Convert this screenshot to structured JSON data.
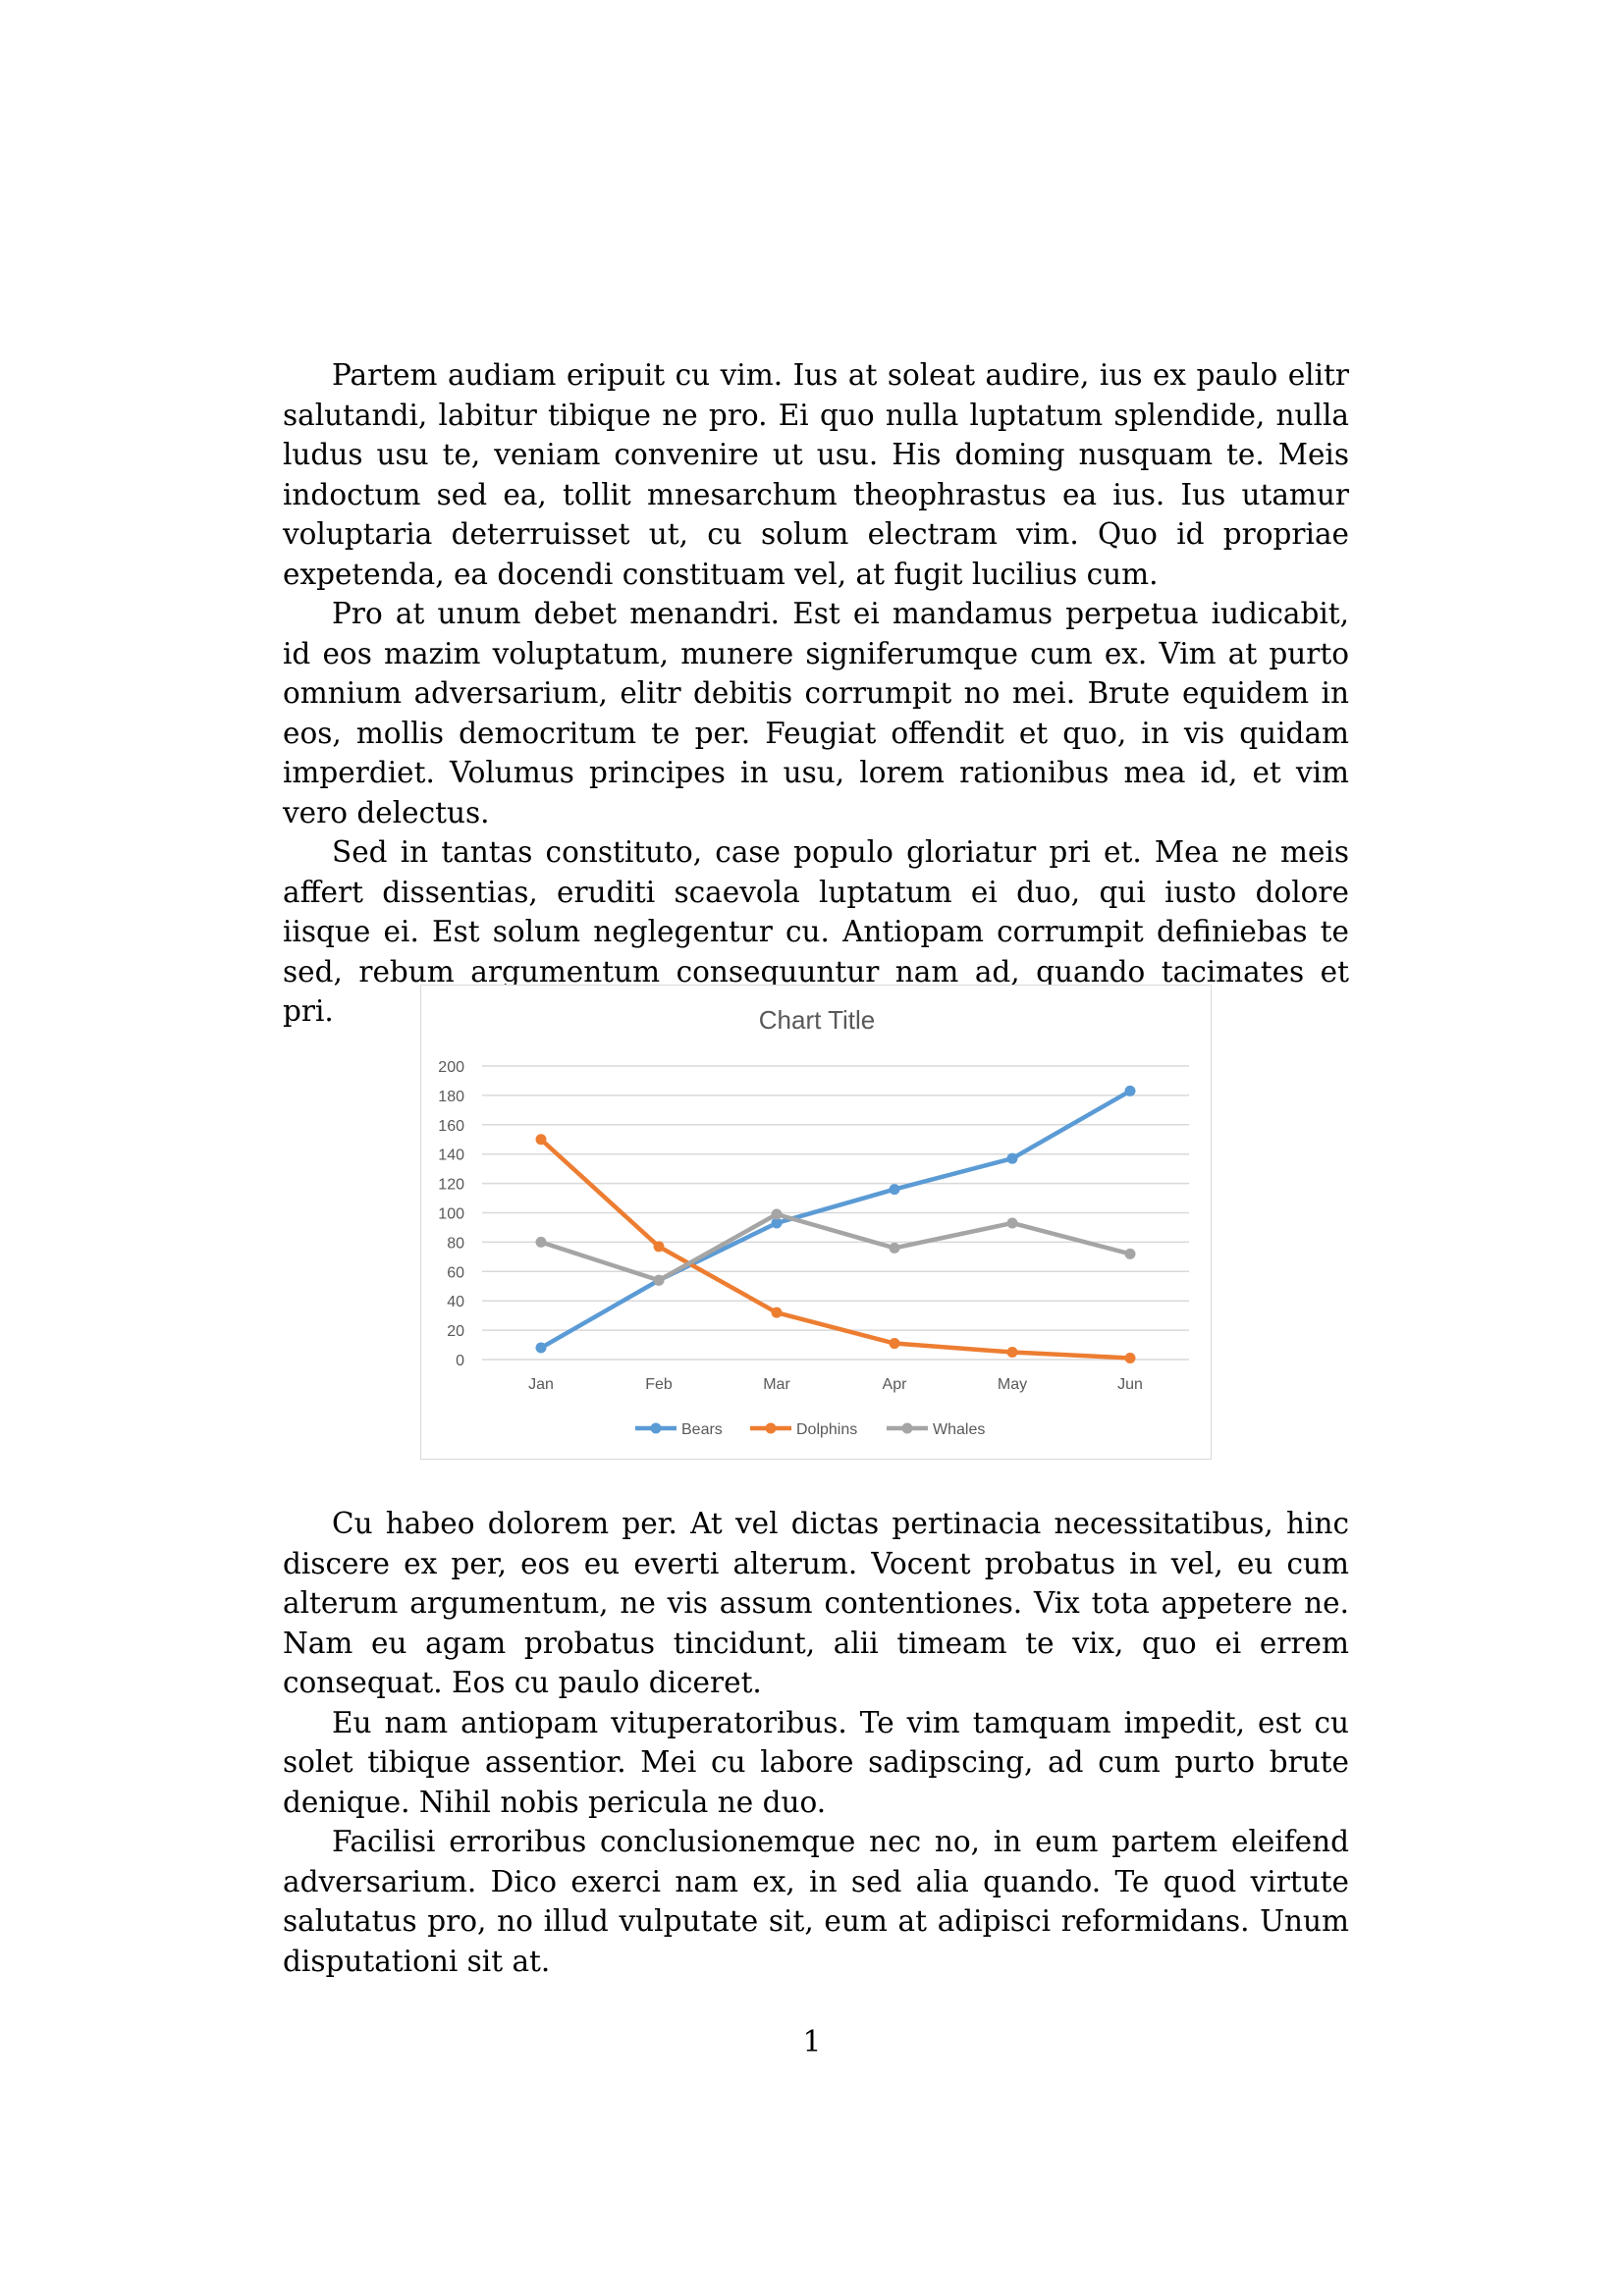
{
  "document": {
    "paragraphs_top": [
      "Partem audiam eripuit cu vim. Ius at soleat audire, ius ex paulo elitr salutandi, labitur tibique ne pro. Ei quo nulla luptatum splendide, nulla ludus usu te, veniam convenire ut usu. His doming nusquam te. Meis indoctum sed ea, tollit mnesarchum theophrastus ea ius. Ius utamur voluptaria deterruisset ut, cu solum electram vim. Quo id propriae expetenda, ea docendi constituam vel, at fugit lucilius cum.",
      "Pro at unum debet menandri. Est ei mandamus perpetua iudicabit, id eos mazim voluptatum, munere signiferumque cum ex. Vim at purto omnium adversarium, elitr debitis corrumpit no mei. Brute equidem in eos, mollis democritum te per. Feugiat offendit et quo, in vis quidam imperdiet. Volumus principes in usu, lorem rationibus mea id, et vim vero delectus.",
      "Sed in tantas constituto, case populo gloriatur pri et. Mea ne meis affert dissentias, eruditi scaevola luptatum ei duo, qui iusto dolore iisque ei. Est solum neglegentur cu. Antiopam corrumpit definiebas te sed, rebum argumentum consequuntur nam ad, quando tacimates et pri."
    ],
    "paragraphs_bottom": [
      "Cu habeo dolorem per. At vel dictas pertinacia necessitatibus, hinc discere ex per, eos eu everti alterum. Vocent probatus in vel, eu cum alterum argumentum, ne vis assum contentiones. Vix tota appetere ne. Nam eu agam probatus tincidunt, alii timeam te vix, quo ei errem consequat. Eos cu paulo diceret.",
      "Eu nam antiopam vituperatoribus. Te vim tamquam impedit, est cu solet tibique assentior. Mei cu labore sadipscing, ad cum purto brute denique. Nihil nobis pericula ne duo.",
      "Facilisi erroribus conclusionemque nec no, in eum partem eleifend adversarium. Dico exerci nam ex, in sed alia quando. Te quod virtute salutatus pro, no illud vulputate sit, eum at adipisci reformidans. Unum disputationi sit at."
    ],
    "page_number": "1"
  },
  "chart_data": {
    "type": "line",
    "title": "Chart Title",
    "xlabel": "",
    "ylabel": "",
    "categories": [
      "Jan",
      "Feb",
      "Mar",
      "Apr",
      "May",
      "Jun"
    ],
    "ylim": [
      0,
      200
    ],
    "yticks": [
      0,
      20,
      40,
      60,
      80,
      100,
      120,
      140,
      160,
      180,
      200
    ],
    "grid": true,
    "legend_position": "bottom",
    "series": [
      {
        "name": "Bears",
        "color": "#5b9bd5",
        "values": [
          8,
          54,
          93,
          116,
          137,
          183
        ]
      },
      {
        "name": "Dolphins",
        "color": "#ed7d31",
        "values": [
          150,
          77,
          32,
          11,
          5,
          1
        ]
      },
      {
        "name": "Whales",
        "color": "#a5a5a5",
        "values": [
          80,
          54,
          99,
          76,
          93,
          72
        ]
      }
    ]
  }
}
